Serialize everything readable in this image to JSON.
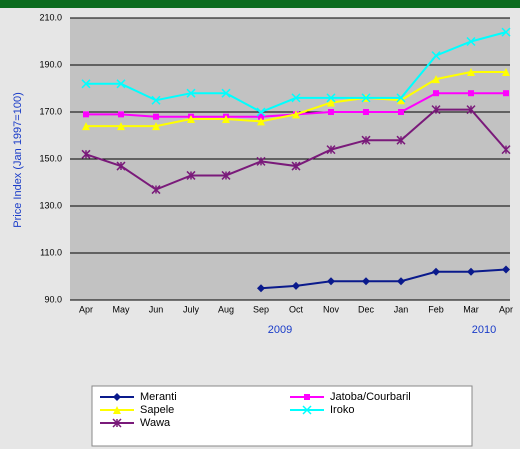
{
  "chart_data": {
    "type": "line",
    "y_label": "Price Index (Jan 1997=100)",
    "categories": [
      "Apr",
      "May",
      "Jun",
      "July",
      "Aug",
      "Sep",
      "Oct",
      "Nov",
      "Dec",
      "Jan",
      "Feb",
      "Mar",
      "Apr"
    ],
    "annotations": [
      "2009",
      "2010"
    ],
    "series": [
      {
        "name": "Meranti",
        "color": "#0a1a8c",
        "marker": "diamond",
        "values": [
          null,
          null,
          null,
          null,
          null,
          95,
          96,
          98,
          98,
          98,
          102,
          102,
          103
        ]
      },
      {
        "name": "Jatoba/Courbaril",
        "color": "#ff00ff",
        "marker": "square",
        "values": [
          169,
          169,
          168,
          168,
          168,
          168,
          169,
          170,
          170,
          170,
          178,
          178,
          178
        ]
      },
      {
        "name": "Sapele",
        "color": "#ffff00",
        "marker": "triangle",
        "values": [
          164,
          164,
          164,
          167,
          167,
          166,
          169,
          174,
          176,
          175,
          184,
          187,
          187
        ]
      },
      {
        "name": "Iroko",
        "color": "#00ffff",
        "marker": "x",
        "values": [
          182,
          182,
          175,
          178,
          178,
          170,
          176,
          176,
          176,
          176,
          194,
          200,
          204
        ]
      },
      {
        "name": "Wawa",
        "color": "#7a1a7a",
        "marker": "star",
        "values": [
          152,
          147,
          137,
          143,
          143,
          149,
          147,
          154,
          158,
          158,
          171,
          171,
          154
        ]
      }
    ],
    "ylim": [
      90,
      210
    ],
    "yticks": [
      {
        "value": 90,
        "label": "90.0"
      },
      {
        "value": 110,
        "label": "110.0"
      },
      {
        "value": 130,
        "label": "130.0"
      },
      {
        "value": 150,
        "label": "150.0"
      },
      {
        "value": 170,
        "label": "170.0"
      },
      {
        "value": 190,
        "label": "190.0"
      },
      {
        "value": 210,
        "label": "210.0"
      }
    ],
    "grid": true,
    "legend": "bottom"
  }
}
